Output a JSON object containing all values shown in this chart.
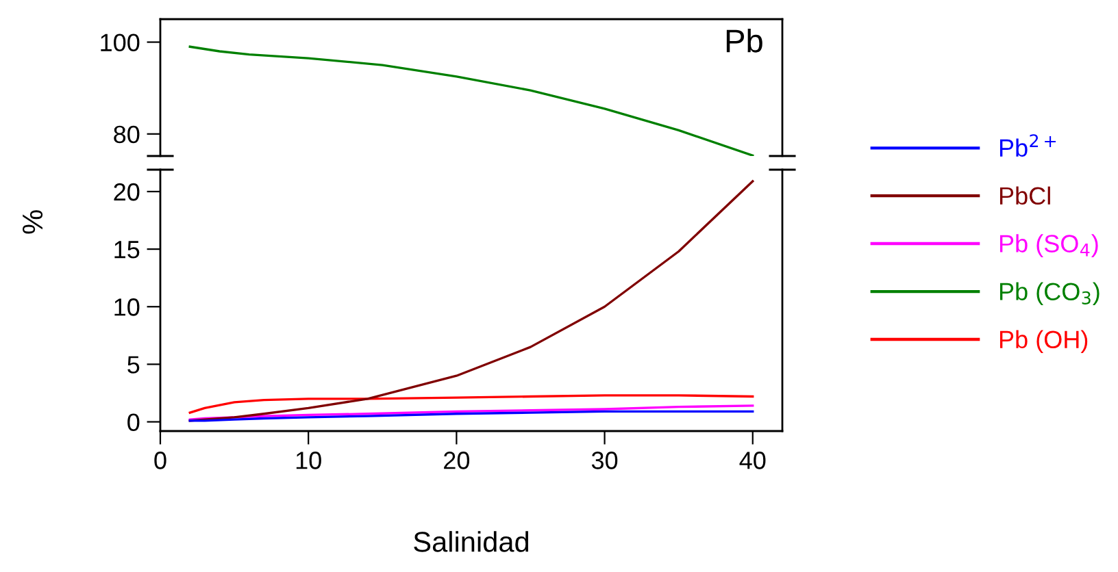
{
  "chart_data": [
    {
      "type": "line",
      "annotations": [
        "Pb"
      ],
      "xlim": [
        0,
        42
      ],
      "xticks": [
        0,
        10,
        20,
        30,
        40
      ],
      "ylim": [
        75.2,
        105
      ],
      "yticks": [
        80,
        100
      ],
      "tick_labels": "y",
      "grid": false,
      "x": [
        2,
        4,
        6,
        10,
        15,
        20,
        25,
        30,
        35,
        40
      ],
      "series": [
        {
          "color": "#008000",
          "values": [
            99,
            98,
            97.3,
            96.5,
            95,
            92.5,
            89.5,
            85.5,
            80.8,
            75.3
          ]
        }
      ]
    },
    {
      "type": "line",
      "xlabel": "Salinidad",
      "ylabel": "%",
      "xlim": [
        0,
        42
      ],
      "xticks": [
        0,
        10,
        20,
        30,
        40
      ],
      "ylim": [
        -0.8,
        21.9
      ],
      "yticks": [
        0,
        5,
        10,
        15,
        20
      ],
      "grid": false,
      "legend": "right",
      "x": [
        2,
        3,
        5,
        7,
        10,
        14,
        20,
        25,
        30,
        35,
        40
      ],
      "series": [
        {
          "name": "Pb$^{2+}$",
          "color": "#0000ff",
          "values": [
            0.1,
            0.1,
            0.2,
            0.3,
            0.4,
            0.5,
            0.7,
            0.8,
            0.9,
            0.9,
            0.9
          ]
        },
        {
          "name": "PbCl",
          "color": "#800000",
          "values": [
            0.1,
            0.2,
            0.4,
            0.7,
            1.2,
            2.0,
            4.0,
            6.5,
            10.0,
            14.8,
            20.9
          ]
        },
        {
          "name": "Pb (SO$_{4}$)",
          "color": "#ff00ff",
          "values": [
            0.2,
            0.3,
            0.4,
            0.5,
            0.6,
            0.7,
            0.9,
            1.0,
            1.1,
            1.3,
            1.4
          ]
        },
        {
          "name": "Pb (CO$_{3}$)",
          "color": "#008000",
          "values": [
            null,
            null,
            null,
            null,
            null,
            null,
            null,
            null,
            null,
            null,
            null
          ]
        },
        {
          "name": "Pb (OH)",
          "color": "#ff0000",
          "values": [
            0.8,
            1.2,
            1.7,
            1.9,
            2.0,
            2.0,
            2.1,
            2.2,
            2.3,
            2.3,
            2.2
          ]
        }
      ]
    }
  ]
}
